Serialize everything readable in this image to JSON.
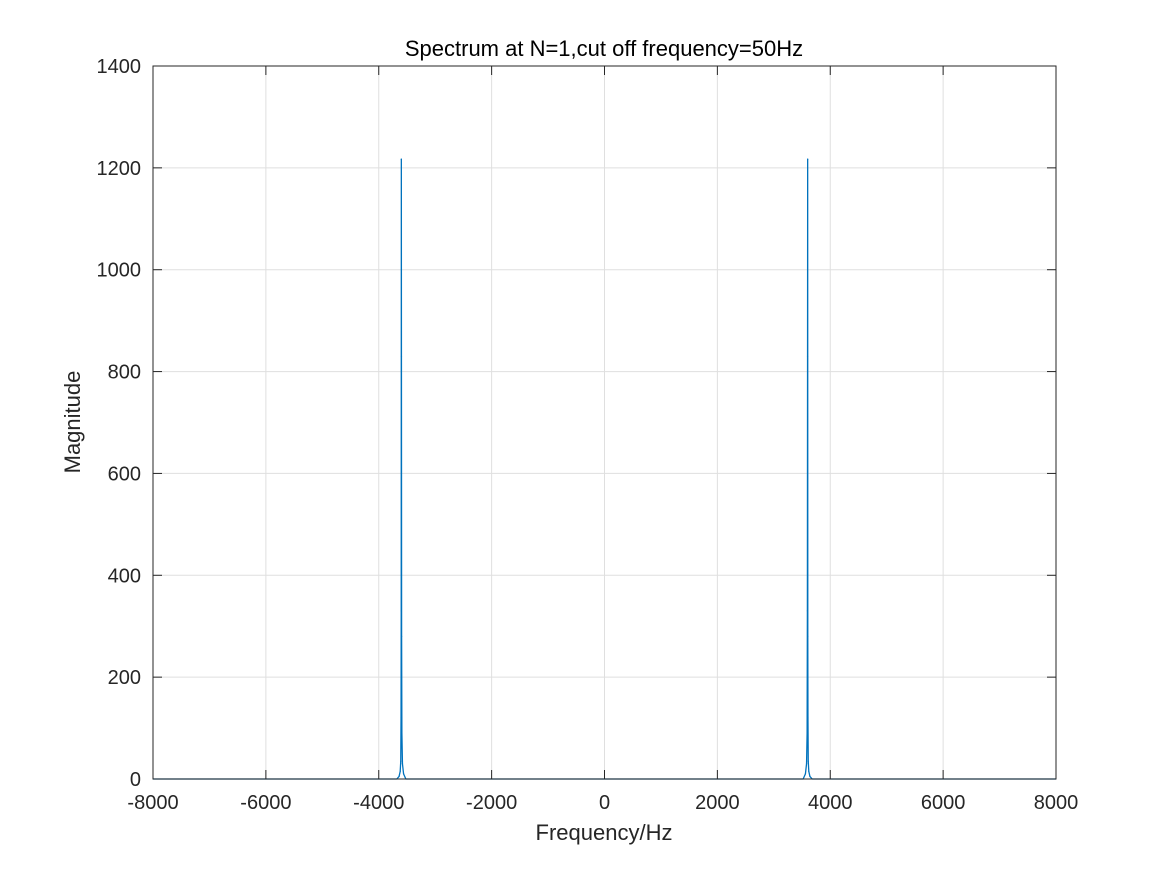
{
  "chart_data": {
    "type": "line",
    "title": "Spectrum at N=1,cut off frequency=50Hz",
    "xlabel": "Frequency/Hz",
    "ylabel": "Magnitude",
    "xlim": [
      -8000,
      8000
    ],
    "ylim": [
      0,
      1400
    ],
    "xticks": [
      -8000,
      -6000,
      -4000,
      -2000,
      0,
      2000,
      4000,
      6000,
      8000
    ],
    "yticks": [
      0,
      200,
      400,
      600,
      800,
      1000,
      1200,
      1400
    ],
    "grid": true,
    "series": [
      {
        "color": "#0072bd",
        "x": [
          -8000,
          -3680,
          -3640,
          -3620,
          -3610,
          -3605,
          -3602,
          -3600,
          -3598,
          -3595,
          -3590,
          -3580,
          -3560,
          -3520,
          3520,
          3560,
          3580,
          3590,
          3595,
          3598,
          3600,
          3602,
          3605,
          3610,
          3620,
          3640,
          3680,
          8000
        ],
        "y": [
          0,
          0,
          5,
          15,
          35,
          120,
          330,
          1217,
          830,
          280,
          90,
          30,
          10,
          0,
          0,
          10,
          30,
          90,
          330,
          830,
          1217,
          280,
          120,
          35,
          15,
          5,
          0,
          0
        ]
      }
    ]
  }
}
